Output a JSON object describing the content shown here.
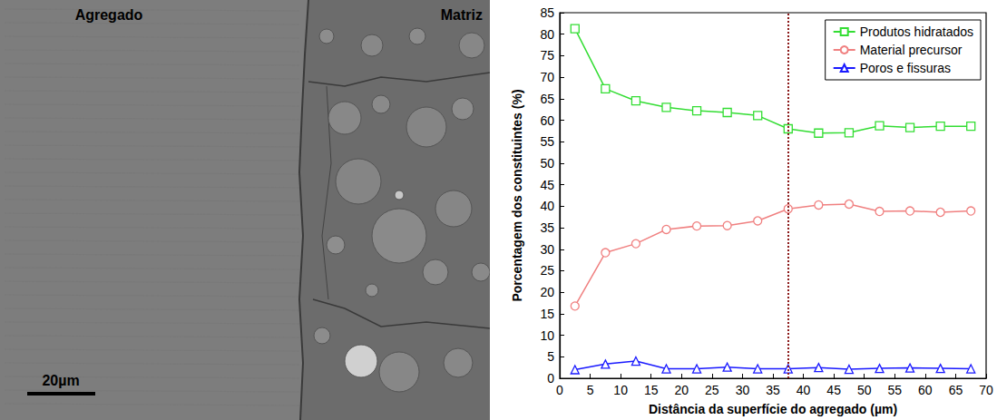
{
  "micrograph": {
    "left_label": "Agregado",
    "right_label": "Matriz",
    "scale_bar": "20µm"
  },
  "chart_data": {
    "type": "line",
    "x_label": "Distância da superfície do agregado (µm)",
    "y_label": "Porcentagem dos constituintes (%)",
    "x": [
      2.5,
      7.5,
      12.5,
      17.5,
      22.5,
      27.5,
      32.5,
      37.5,
      42.5,
      47.5,
      52.5,
      57.5,
      62.5,
      67.5
    ],
    "series": [
      {
        "name": "Produtos hidratados",
        "color": "#33dd33",
        "marker": "square",
        "values": [
          81.3,
          67.3,
          64.5,
          63.0,
          62.2,
          61.8,
          61.1,
          58.0,
          57.0,
          57.1,
          58.7,
          58.3,
          58.6,
          58.6
        ]
      },
      {
        "name": "Material precursor",
        "color": "#f08080",
        "marker": "circle",
        "values": [
          16.8,
          29.2,
          31.3,
          34.6,
          35.4,
          35.5,
          36.6,
          39.4,
          40.3,
          40.5,
          38.8,
          38.9,
          38.6,
          38.9
        ]
      },
      {
        "name": "Poros e fissuras",
        "color": "#1a1aff",
        "marker": "triangle",
        "values": [
          2.0,
          3.3,
          4.0,
          2.2,
          2.2,
          2.6,
          2.2,
          2.2,
          2.5,
          2.1,
          2.3,
          2.4,
          2.3,
          2.2
        ]
      }
    ],
    "vline": {
      "x": 37.5,
      "color": "#8b1a1a",
      "line_style": "dotted"
    },
    "xlim": [
      0,
      70
    ],
    "xticks": [
      0,
      5,
      10,
      15,
      20,
      25,
      30,
      35,
      40,
      45,
      50,
      55,
      60,
      65,
      70
    ],
    "ylim": [
      0,
      85
    ],
    "yticks": [
      0,
      5,
      10,
      15,
      20,
      25,
      30,
      35,
      40,
      45,
      50,
      55,
      60,
      65,
      70,
      75,
      80,
      85
    ],
    "grid": false,
    "legend": "upper right"
  }
}
